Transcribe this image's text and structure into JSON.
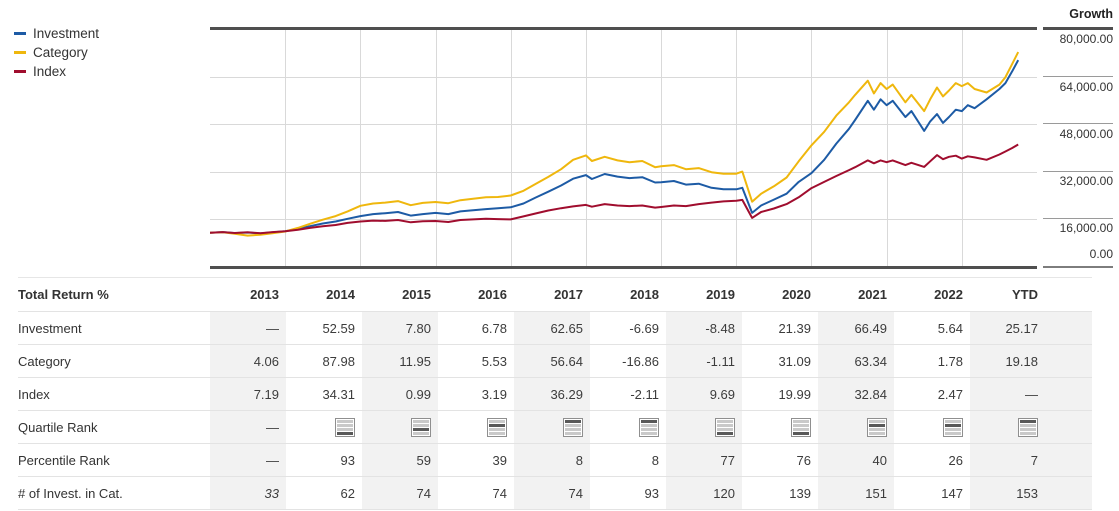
{
  "chart": {
    "growth_label": "Growth",
    "y_axis": {
      "labels": [
        "80,000.00",
        "64,000.00",
        "48,000.00",
        "32,000.00",
        "16,000.00",
        "0.00"
      ],
      "ticks": [
        80000,
        64000,
        48000,
        32000,
        16000,
        0
      ]
    },
    "chart_data": {
      "type": "line",
      "title": "Growth of investment",
      "xlim": [
        2013,
        2024
      ],
      "ylim": [
        0,
        80000
      ],
      "grid_years": [
        2014,
        2015,
        2016,
        2017,
        2018,
        2019,
        2020,
        2021,
        2022,
        2023
      ],
      "grid_values": [
        16000,
        32000,
        48000,
        64000
      ],
      "grid_color": "#d9d9d9",
      "legend_position": "top-left",
      "x": [
        2013.0,
        2013.17,
        2013.33,
        2013.5,
        2013.67,
        2013.83,
        2014.0,
        2014.17,
        2014.33,
        2014.5,
        2014.67,
        2014.83,
        2015.0,
        2015.17,
        2015.33,
        2015.5,
        2015.67,
        2015.83,
        2016.0,
        2016.17,
        2016.33,
        2016.5,
        2016.67,
        2016.83,
        2017.0,
        2017.17,
        2017.33,
        2017.5,
        2017.67,
        2017.83,
        2018.0,
        2018.08,
        2018.25,
        2018.42,
        2018.58,
        2018.75,
        2018.92,
        2019.0,
        2019.17,
        2019.33,
        2019.5,
        2019.67,
        2019.83,
        2020.0,
        2020.08,
        2020.21,
        2020.33,
        2020.5,
        2020.67,
        2020.83,
        2021.0,
        2021.17,
        2021.33,
        2021.5,
        2021.58,
        2021.75,
        2021.83,
        2021.92,
        2022.0,
        2022.08,
        2022.25,
        2022.33,
        2022.5,
        2022.58,
        2022.67,
        2022.75,
        2022.83,
        2022.92,
        2023.0,
        2023.08,
        2023.17,
        2023.33,
        2023.5,
        2023.58,
        2023.67,
        2023.75
      ],
      "series": [
        {
          "name": "Investment",
          "color": "#1d5ba5",
          "values": [
            11300,
            11500,
            11150,
            11350,
            11050,
            11400,
            11800,
            12600,
            13500,
            14400,
            15100,
            16000,
            16900,
            17600,
            17900,
            18300,
            17100,
            17600,
            18000,
            17600,
            18500,
            18900,
            19300,
            19600,
            19900,
            21200,
            23200,
            25200,
            27300,
            29600,
            30800,
            29500,
            31200,
            30300,
            29800,
            30100,
            28300,
            28400,
            28800,
            27600,
            27900,
            26500,
            26000,
            26000,
            26500,
            18000,
            20500,
            22500,
            24500,
            28500,
            31500,
            36000,
            41500,
            46500,
            49500,
            56000,
            53000,
            56500,
            54500,
            56000,
            50500,
            52500,
            45800,
            49000,
            51500,
            48500,
            50500,
            53000,
            52500,
            54500,
            53500,
            56500,
            60000,
            62000,
            66000,
            69800
          ]
        },
        {
          "name": "Category",
          "color": "#efb70d",
          "values": [
            11300,
            11450,
            10900,
            10300,
            10600,
            11100,
            11700,
            12900,
            14300,
            15700,
            16900,
            18500,
            20400,
            21200,
            21500,
            22000,
            20600,
            21400,
            21700,
            21300,
            22300,
            22800,
            23300,
            23400,
            23900,
            25500,
            27800,
            30200,
            32800,
            36000,
            37500,
            35600,
            37000,
            35800,
            35200,
            35600,
            33500,
            33800,
            34200,
            32800,
            33200,
            31800,
            31300,
            31300,
            32000,
            21800,
            24500,
            27000,
            30000,
            35500,
            40900,
            45500,
            51000,
            55500,
            58000,
            62800,
            58500,
            62000,
            60000,
            61500,
            55500,
            58000,
            52500,
            56500,
            60500,
            57500,
            59500,
            62000,
            61000,
            62000,
            60000,
            58800,
            61500,
            64000,
            68500,
            72500
          ]
        },
        {
          "name": "Index",
          "color": "#a00d2e",
          "values": [
            11300,
            11500,
            11200,
            11450,
            11100,
            11500,
            11750,
            12300,
            12900,
            13500,
            13900,
            14600,
            15100,
            15400,
            15300,
            15600,
            14800,
            15200,
            15250,
            14900,
            15600,
            15800,
            16000,
            15900,
            15800,
            16800,
            17800,
            18800,
            19600,
            20200,
            20700,
            20100,
            21000,
            20500,
            20300,
            20500,
            19800,
            20000,
            20500,
            20300,
            21000,
            21500,
            21900,
            22100,
            22400,
            16300,
            18300,
            19500,
            21000,
            23300,
            26400,
            28500,
            30500,
            32500,
            33500,
            35800,
            34800,
            35800,
            35200,
            35800,
            34200,
            35000,
            33600,
            35500,
            37600,
            36200,
            37000,
            37400,
            36400,
            37200,
            36800,
            36000,
            37800,
            38800,
            40000,
            41200
          ]
        }
      ]
    }
  },
  "table": {
    "header_label": "Total Return %",
    "columns": [
      "2013",
      "2014",
      "2015",
      "2016",
      "2017",
      "2018",
      "2019",
      "2020",
      "2021",
      "2022",
      "YTD"
    ],
    "shaded_columns": [
      0,
      2,
      4,
      6,
      8,
      10
    ],
    "rows": [
      {
        "label": "Investment",
        "type": "values",
        "cells": [
          "—",
          "52.59",
          "7.80",
          "6.78",
          "62.65",
          "-6.69",
          "-8.48",
          "21.39",
          "66.49",
          "5.64",
          "25.17"
        ]
      },
      {
        "label": "Category",
        "type": "values",
        "cells": [
          "4.06",
          "87.98",
          "11.95",
          "5.53",
          "56.64",
          "-16.86",
          "-1.11",
          "31.09",
          "63.34",
          "1.78",
          "19.18"
        ]
      },
      {
        "label": "Index",
        "type": "values",
        "cells": [
          "7.19",
          "34.31",
          "0.99",
          "3.19",
          "36.29",
          "-2.11",
          "9.69",
          "19.99",
          "32.84",
          "2.47",
          "—"
        ]
      },
      {
        "label": "Quartile Rank",
        "type": "quartile",
        "cells": [
          "—",
          "4",
          "3",
          "2",
          "1",
          "1",
          "4",
          "4",
          "2",
          "2",
          "1"
        ]
      },
      {
        "label": "Percentile Rank",
        "type": "values",
        "cells": [
          "—",
          "93",
          "59",
          "39",
          "8",
          "8",
          "77",
          "76",
          "40",
          "26",
          "7"
        ]
      },
      {
        "label": "# of Invest. in Cat.",
        "type": "values",
        "italic_cells": [
          0
        ],
        "cells": [
          "33",
          "62",
          "74",
          "74",
          "74",
          "93",
          "120",
          "139",
          "151",
          "147",
          "153"
        ]
      }
    ]
  }
}
